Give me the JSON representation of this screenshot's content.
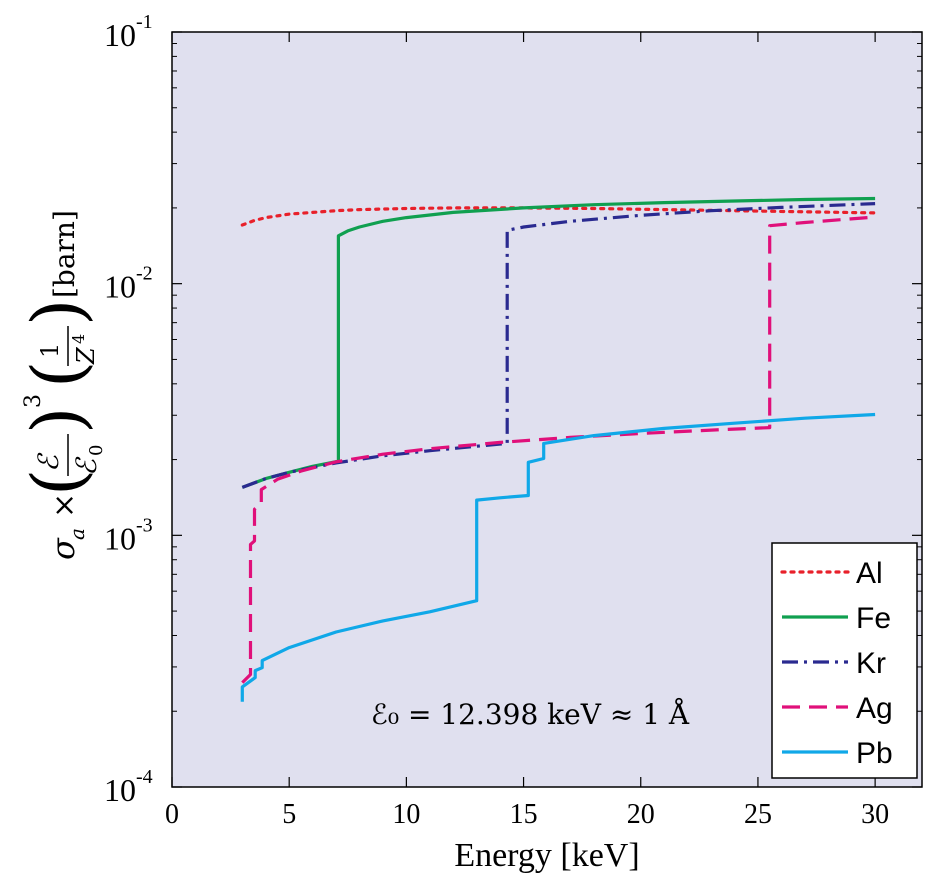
{
  "chart_data": {
    "type": "line",
    "title": "",
    "xlabel": "Energy [keV]",
    "ylabel": {
      "sigma": "σ",
      "sub": "a",
      "times": "×",
      "frac1_num": "ℰ",
      "frac1_den": "ℰ",
      "frac1_den_sub": "0",
      "power": "3",
      "frac2_num": "1",
      "frac2_den": "Z",
      "frac2_den_sup": "4",
      "unit": "[barn]"
    },
    "xlim": [
      0,
      32
    ],
    "ylim": [
      0.0001,
      0.1
    ],
    "yscale": "log",
    "grid": false,
    "legend_position": "bottom-right",
    "background": "#e0e0ef",
    "x_ticks": [
      {
        "value": 0,
        "label": "0"
      },
      {
        "value": 5,
        "label": "5"
      },
      {
        "value": 10,
        "label": "10"
      },
      {
        "value": 15,
        "label": "15"
      },
      {
        "value": 20,
        "label": "20"
      },
      {
        "value": 25,
        "label": "25"
      },
      {
        "value": 30,
        "label": "30"
      }
    ],
    "y_ticks": [
      {
        "value": 0.1,
        "base": "10",
        "exp": "-1"
      },
      {
        "value": 0.01,
        "base": "10",
        "exp": "-2"
      },
      {
        "value": 0.001,
        "base": "10",
        "exp": "-3"
      },
      {
        "value": 0.0001,
        "base": "10",
        "exp": "-4"
      }
    ],
    "annotation": "ℰ₀ = 12.398 keV ≈ 1 Å",
    "series": [
      {
        "name": "Al",
        "color": "#e8202a",
        "dash": "dotted",
        "points": [
          [
            3.0,
            0.0171
          ],
          [
            3.5,
            0.0178
          ],
          [
            4.0,
            0.0183
          ],
          [
            5.0,
            0.0189
          ],
          [
            6.0,
            0.0192
          ],
          [
            7.0,
            0.0195
          ],
          [
            8.0,
            0.0197
          ],
          [
            10.0,
            0.0199
          ],
          [
            12.0,
            0.02
          ],
          [
            15.0,
            0.02
          ],
          [
            18.0,
            0.0199
          ],
          [
            21.0,
            0.0197
          ],
          [
            24.0,
            0.0195
          ],
          [
            27.0,
            0.0193
          ],
          [
            30.0,
            0.0191
          ]
        ]
      },
      {
        "name": "Fe",
        "color": "#10a050",
        "dash": "solid",
        "points": [
          [
            3.0,
            0.00155
          ],
          [
            4.0,
            0.00168
          ],
          [
            5.0,
            0.00178
          ],
          [
            6.0,
            0.00188
          ],
          [
            7.1,
            0.00197
          ],
          [
            7.1,
            0.0155
          ],
          [
            7.5,
            0.0162
          ],
          [
            8.0,
            0.0168
          ],
          [
            9.0,
            0.0177
          ],
          [
            10.0,
            0.0183
          ],
          [
            12.0,
            0.0192
          ],
          [
            15.0,
            0.02
          ],
          [
            18.0,
            0.0206
          ],
          [
            21.0,
            0.021
          ],
          [
            24.0,
            0.0213
          ],
          [
            27.0,
            0.0216
          ],
          [
            30.0,
            0.0218
          ]
        ]
      },
      {
        "name": "Kr",
        "color": "#2a2a90",
        "dash": "dashdot",
        "points": [
          [
            3.0,
            0.00155
          ],
          [
            4.0,
            0.00168
          ],
          [
            5.0,
            0.00178
          ],
          [
            7.0,
            0.00194
          ],
          [
            9.0,
            0.00207
          ],
          [
            11.0,
            0.00217
          ],
          [
            13.0,
            0.00226
          ],
          [
            14.3,
            0.00232
          ],
          [
            14.3,
            0.0163
          ],
          [
            15.0,
            0.0168
          ],
          [
            17.0,
            0.0177
          ],
          [
            20.0,
            0.0187
          ],
          [
            23.0,
            0.0195
          ],
          [
            26.0,
            0.0201
          ],
          [
            30.0,
            0.0208
          ]
        ]
      },
      {
        "name": "Ag",
        "color": "#e0107a",
        "dash": "dashed",
        "points": [
          [
            3.0,
            0.00026
          ],
          [
            3.35,
            0.00028
          ],
          [
            3.35,
            0.00092
          ],
          [
            3.52,
            0.00095
          ],
          [
            3.52,
            0.00127
          ],
          [
            3.81,
            0.00134
          ],
          [
            3.81,
            0.00152
          ],
          [
            4.5,
            0.00167
          ],
          [
            5.5,
            0.0018
          ],
          [
            7.0,
            0.00196
          ],
          [
            9.0,
            0.0021
          ],
          [
            11.0,
            0.00221
          ],
          [
            14.0,
            0.00234
          ],
          [
            17.0,
            0.00245
          ],
          [
            20.0,
            0.00254
          ],
          [
            23.0,
            0.00262
          ],
          [
            25.5,
            0.00268
          ],
          [
            25.5,
            0.017
          ],
          [
            27.0,
            0.0175
          ],
          [
            30.0,
            0.0184
          ]
        ]
      },
      {
        "name": "Pb",
        "color": "#10a8e8",
        "dash": "solid",
        "points": [
          [
            3.0,
            0.000218
          ],
          [
            3.0,
            0.00025
          ],
          [
            3.55,
            0.000272
          ],
          [
            3.55,
            0.00029
          ],
          [
            3.85,
            0.000298
          ],
          [
            3.85,
            0.000318
          ],
          [
            5.0,
            0.000358
          ],
          [
            7.0,
            0.000413
          ],
          [
            9.0,
            0.000457
          ],
          [
            11.0,
            0.000497
          ],
          [
            13.0,
            0.00055
          ],
          [
            13.0,
            0.00138
          ],
          [
            14.0,
            0.00141
          ],
          [
            15.2,
            0.00144
          ],
          [
            15.2,
            0.00195
          ],
          [
            15.86,
            0.00202
          ],
          [
            15.86,
            0.00232
          ],
          [
            18.0,
            0.00249
          ],
          [
            21.0,
            0.00266
          ],
          [
            24.0,
            0.00279
          ],
          [
            27.0,
            0.00292
          ],
          [
            30.0,
            0.00302
          ]
        ]
      }
    ]
  }
}
